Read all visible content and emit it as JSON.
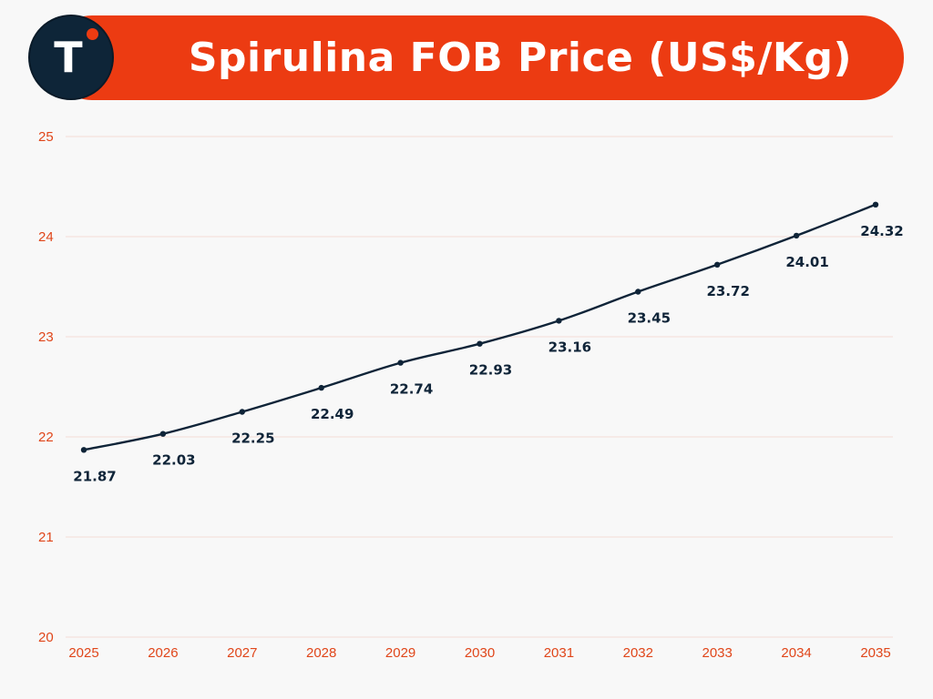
{
  "header": {
    "title": "Spirulina FOB Price (US$/Kg)",
    "logo_letter": "T"
  },
  "colors": {
    "banner": "#ec3b12",
    "line": "#0f2438",
    "tick_text": "#e0461a",
    "grid": "#f3dcd6"
  },
  "chart_data": {
    "type": "line",
    "title": "Spirulina FOB Price (US$/Kg)",
    "xlabel": "",
    "ylabel": "",
    "categories": [
      "2025",
      "2026",
      "2027",
      "2028",
      "2029",
      "2030",
      "2031",
      "2032",
      "2033",
      "2034",
      "2035"
    ],
    "series": [
      {
        "values": [
          21.87,
          22.03,
          22.25,
          22.49,
          22.74,
          22.93,
          23.16,
          23.45,
          23.72,
          24.01,
          24.32
        ]
      }
    ],
    "data_labels": [
      "21.87",
      "22.03",
      "22.25",
      "22.49",
      "22.74",
      "22.93",
      "23.16",
      "23.45",
      "23.72",
      "24.01",
      "24.32"
    ],
    "ylim": [
      20,
      25
    ],
    "yticks": [
      "20",
      "21",
      "22",
      "23",
      "24",
      "25"
    ],
    "grid": true,
    "legend": "none"
  }
}
